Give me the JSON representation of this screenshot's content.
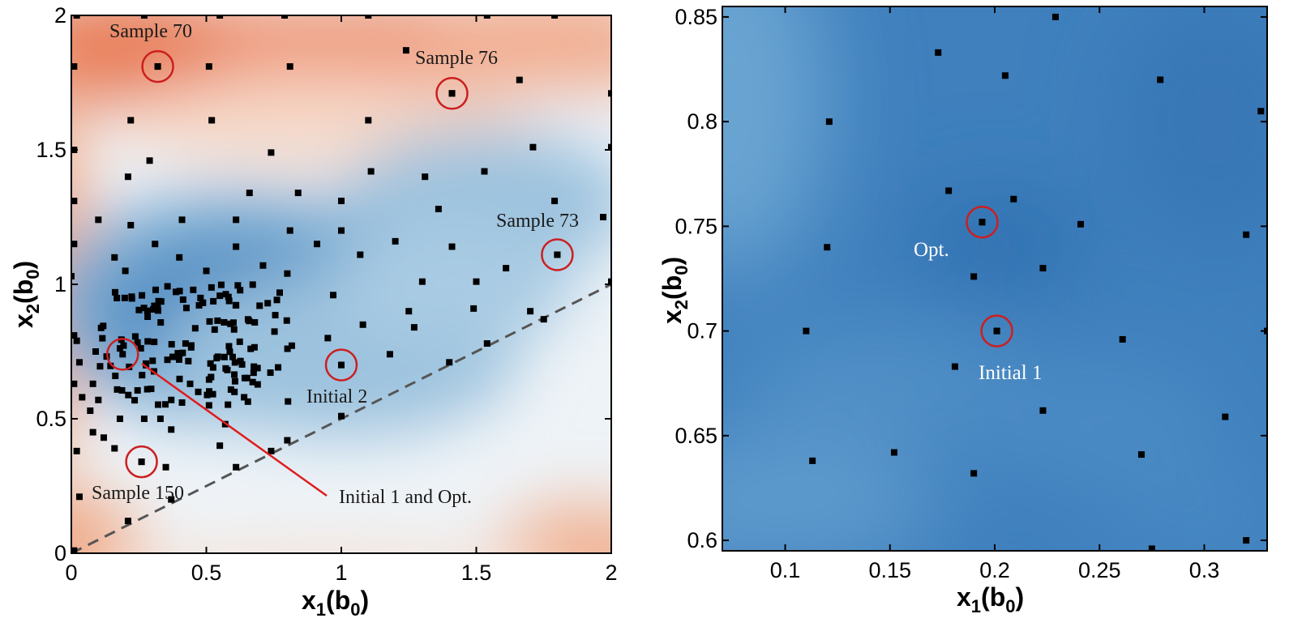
{
  "chart_data": [
    {
      "type": "scatter",
      "background": "contour",
      "xlabel": {
        "main": "x",
        "sub": "1",
        "tail": "(b",
        "sub2": "0",
        "end": ")"
      },
      "ylabel": {
        "main": "x",
        "sub": "2",
        "tail": "(b",
        "sub2": "0",
        "end": ")"
      },
      "xlim": [
        0,
        2
      ],
      "ylim": [
        0,
        2
      ],
      "xticks": [
        "0",
        "0.5",
        "1",
        "1.5",
        "2"
      ],
      "yticks": [
        "0",
        "0.5",
        "1",
        "1.5",
        "2"
      ],
      "xtick_values": [
        0,
        0.5,
        1,
        1.5,
        2
      ],
      "ytick_values": [
        0,
        0.5,
        1,
        1.5,
        2
      ],
      "colors": {
        "high": "#e8825f",
        "mid": "#f6eee9",
        "low": "#2f6ead",
        "marker": "#000000",
        "highlight": "#cc1f1f",
        "diagonal": "#555555"
      },
      "diagonal_line": {
        "x": [
          0,
          2
        ],
        "y": [
          0,
          1
        ]
      },
      "points": [
        [
          0.32,
          1.81
        ],
        [
          0.51,
          1.81
        ],
        [
          0.81,
          1.81
        ],
        [
          1.24,
          1.87
        ],
        [
          1.66,
          1.76
        ],
        [
          0.01,
          1.81
        ],
        [
          0.55,
          2.0
        ],
        [
          0.79,
          2.0
        ],
        [
          1.1,
          2.0
        ],
        [
          1.54,
          2.0
        ],
        [
          1.79,
          2.0
        ],
        [
          0.27,
          2.0
        ],
        [
          0.02,
          2.0
        ],
        [
          0.22,
          1.61
        ],
        [
          0.52,
          1.61
        ],
        [
          1.1,
          1.61
        ],
        [
          1.41,
          1.71
        ],
        [
          2.0,
          1.71
        ],
        [
          0.29,
          1.46
        ],
        [
          0.74,
          1.49
        ],
        [
          1.71,
          1.51
        ],
        [
          2.0,
          1.51
        ],
        [
          0.01,
          1.5
        ],
        [
          0.21,
          1.4
        ],
        [
          1.11,
          1.42
        ],
        [
          1.31,
          1.4
        ],
        [
          1.53,
          1.42
        ],
        [
          0.66,
          1.34
        ],
        [
          0.84,
          1.34
        ],
        [
          1.36,
          1.28
        ],
        [
          1.79,
          1.31
        ],
        [
          0.01,
          1.31
        ],
        [
          0.1,
          1.24
        ],
        [
          0.41,
          1.24
        ],
        [
          0.61,
          1.24
        ],
        [
          0.22,
          1.22
        ],
        [
          1.0,
          1.31
        ],
        [
          1.97,
          1.25
        ],
        [
          0.81,
          1.2
        ],
        [
          1.0,
          1.2
        ],
        [
          1.61,
          1.06
        ],
        [
          0.31,
          1.15
        ],
        [
          0.61,
          1.14
        ],
        [
          0.91,
          1.15
        ],
        [
          1.2,
          1.16
        ],
        [
          1.41,
          1.14
        ],
        [
          0.16,
          1.1
        ],
        [
          0.4,
          1.1
        ],
        [
          0.71,
          1.07
        ],
        [
          1.07,
          1.11
        ],
        [
          1.8,
          1.11
        ],
        [
          0.01,
          1.15
        ],
        [
          0.0,
          1.03
        ],
        [
          0.2,
          1.05
        ],
        [
          0.5,
          1.05
        ],
        [
          0.8,
          1.04
        ],
        [
          1.3,
          1.01
        ],
        [
          1.5,
          1.01
        ],
        [
          2.0,
          1.01
        ],
        [
          0.01,
          0.81
        ],
        [
          0.01,
          0.63
        ],
        [
          0.04,
          0.58
        ],
        [
          0.02,
          0.38
        ],
        [
          0.03,
          0.21
        ],
        [
          0.01,
          0.01
        ],
        [
          0.02,
          0.79
        ],
        [
          0.03,
          0.71
        ],
        [
          0.09,
          0.75
        ],
        [
          1.7,
          0.9
        ],
        [
          1.49,
          0.91
        ],
        [
          1.75,
          0.87
        ],
        [
          1.25,
          0.9
        ],
        [
          0.97,
          0.96
        ],
        [
          1.08,
          0.85
        ],
        [
          1.27,
          0.84
        ],
        [
          0.95,
          0.8
        ],
        [
          1.4,
          0.71
        ],
        [
          1.54,
          0.78
        ],
        [
          1.18,
          0.74
        ],
        [
          1.0,
          0.7
        ],
        [
          1.0,
          0.51
        ],
        [
          0.8,
          0.42
        ],
        [
          0.74,
          0.38
        ],
        [
          0.61,
          0.32
        ],
        [
          0.35,
          0.32
        ],
        [
          0.26,
          0.34
        ],
        [
          0.37,
          0.2
        ],
        [
          0.21,
          0.12
        ],
        [
          0.47,
          0.6
        ],
        [
          0.55,
          0.4
        ],
        [
          0.07,
          0.53
        ],
        [
          0.08,
          0.45
        ],
        [
          0.12,
          0.43
        ],
        [
          0.16,
          0.39
        ],
        [
          0.18,
          0.5
        ],
        [
          0.27,
          0.5
        ],
        [
          0.33,
          0.5
        ],
        [
          0.37,
          0.46
        ],
        [
          0.51,
          0.55
        ],
        [
          0.57,
          0.48
        ],
        [
          0.64,
          0.58
        ],
        [
          0.44,
          0.63
        ],
        [
          0.37,
          0.57
        ],
        [
          0.08,
          0.63
        ],
        [
          0.1,
          0.57
        ]
      ],
      "cluster_generated": {
        "count": 140,
        "x_range": [
          0.1,
          0.82
        ],
        "y_range": [
          0.55,
          1.0
        ]
      },
      "highlighted": [
        {
          "x": 0.32,
          "y": 1.81,
          "label": "Sample 70"
        },
        {
          "x": 1.41,
          "y": 1.71,
          "label": "Sample 76"
        },
        {
          "x": 1.8,
          "y": 1.11,
          "label": "Sample 73"
        },
        {
          "x": 1.0,
          "y": 0.7,
          "label": "Initial 2"
        },
        {
          "x": 0.26,
          "y": 0.34,
          "label": "Sample 150"
        },
        {
          "x": 0.19,
          "y": 0.74,
          "label": "Initial 1 and Opt."
        }
      ]
    },
    {
      "type": "scatter",
      "background": "contour",
      "xlabel": {
        "main": "x",
        "sub": "1",
        "tail": "(b",
        "sub2": "0",
        "end": ")"
      },
      "ylabel": {
        "main": "x",
        "sub": "2",
        "tail": "(b",
        "sub2": "0",
        "end": ")"
      },
      "xlim": [
        0.07,
        0.33
      ],
      "ylim": [
        0.595,
        0.855
      ],
      "xticks": [
        "0.1",
        "0.15",
        "0.2",
        "0.25",
        "0.3"
      ],
      "yticks": [
        "0.6",
        "0.65",
        "0.7",
        "0.75",
        "0.8",
        "0.85"
      ],
      "xtick_values": [
        0.1,
        0.15,
        0.2,
        0.25,
        0.3
      ],
      "ytick_values": [
        0.6,
        0.65,
        0.7,
        0.75,
        0.8,
        0.85
      ],
      "colors": {
        "fill": "#3f80bd",
        "marker": "#000000",
        "highlight": "#cc1f1f"
      },
      "points": [
        [
          0.229,
          0.85
        ],
        [
          0.173,
          0.833
        ],
        [
          0.205,
          0.822
        ],
        [
          0.279,
          0.82
        ],
        [
          0.121,
          0.8
        ],
        [
          0.327,
          0.805
        ],
        [
          0.178,
          0.767
        ],
        [
          0.209,
          0.763
        ],
        [
          0.194,
          0.752
        ],
        [
          0.241,
          0.751
        ],
        [
          0.12,
          0.74
        ],
        [
          0.32,
          0.746
        ],
        [
          0.223,
          0.73
        ],
        [
          0.19,
          0.726
        ],
        [
          0.201,
          0.7
        ],
        [
          0.11,
          0.7
        ],
        [
          0.261,
          0.696
        ],
        [
          0.33,
          0.7
        ],
        [
          0.181,
          0.683
        ],
        [
          0.223,
          0.662
        ],
        [
          0.31,
          0.659
        ],
        [
          0.152,
          0.642
        ],
        [
          0.27,
          0.641
        ],
        [
          0.113,
          0.638
        ],
        [
          0.19,
          0.632
        ],
        [
          0.275,
          0.596
        ],
        [
          0.32,
          0.6
        ]
      ],
      "highlighted": [
        {
          "x": 0.194,
          "y": 0.752,
          "label": "Opt."
        },
        {
          "x": 0.201,
          "y": 0.7,
          "label": "Initial 1"
        }
      ]
    }
  ]
}
